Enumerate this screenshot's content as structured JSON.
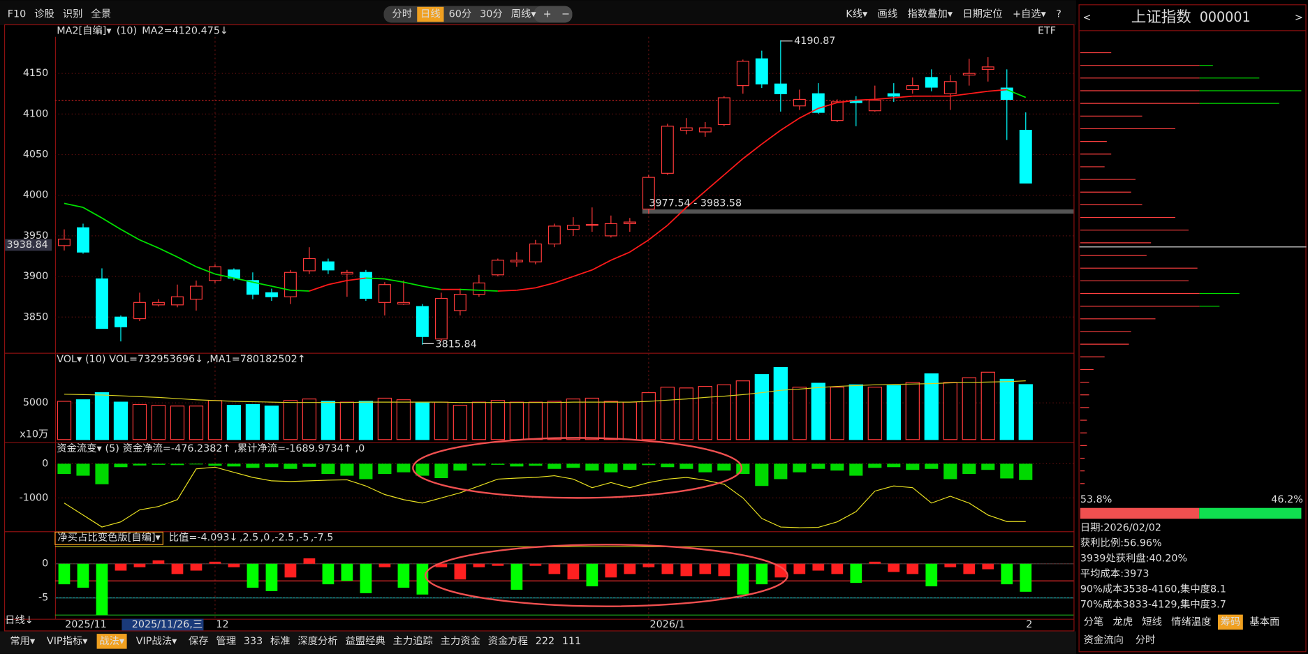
{
  "toolbar": {
    "left": [
      "F10",
      "诊股",
      "识别",
      "全景"
    ],
    "periods": [
      "分时",
      "日线",
      "60分",
      "30分",
      "周线▾"
    ],
    "active_period": 1,
    "zoom": [
      "+",
      "−"
    ],
    "right": [
      "K线▾",
      "画线",
      "指数叠加▾",
      "日期定位",
      "+自选▾",
      "?"
    ]
  },
  "main": {
    "indicator": "MA2[自编]▾",
    "param": "(10)",
    "value_text": "MA2=4120.475↓",
    "etf": "ETF",
    "ylim": [
      3808,
      4195
    ],
    "yticks": [
      4150,
      4100,
      4050,
      4000,
      3950,
      3900,
      3850
    ],
    "price_tag": 3938.84,
    "annotations": [
      "4190.87",
      "3977.54 - 3983.58",
      "3815.84"
    ],
    "up_color": "#ff3a3a",
    "down_color": "#00ffff",
    "ma_up_color": "#ff1a1a",
    "ma_down_color": "#00e000",
    "candles": [
      [
        3938,
        3958,
        3932,
        3946
      ],
      [
        3960,
        3965,
        3928,
        3930
      ],
      [
        3897,
        3910,
        3836,
        3836
      ],
      [
        3850,
        3852,
        3820,
        3838
      ],
      [
        3848,
        3880,
        3845,
        3868
      ],
      [
        3865,
        3872,
        3863,
        3868
      ],
      [
        3865,
        3890,
        3862,
        3875
      ],
      [
        3872,
        3895,
        3858,
        3888
      ],
      [
        3895,
        3915,
        3892,
        3912
      ],
      [
        3908,
        3910,
        3895,
        3898
      ],
      [
        3895,
        3905,
        3872,
        3878
      ],
      [
        3880,
        3885,
        3870,
        3875
      ],
      [
        3875,
        3908,
        3866,
        3905
      ],
      [
        3907,
        3936,
        3903,
        3922
      ],
      [
        3918,
        3922,
        3903,
        3908
      ],
      [
        3903,
        3908,
        3875,
        3905
      ],
      [
        3905,
        3908,
        3870,
        3873
      ],
      [
        3868,
        3893,
        3852,
        3890
      ],
      [
        3866,
        3895,
        3865,
        3868
      ],
      [
        3863,
        3866,
        3816,
        3826
      ],
      [
        3823,
        3880,
        3820,
        3873
      ],
      [
        3858,
        3885,
        3852,
        3878
      ],
      [
        3878,
        3902,
        3875,
        3892
      ],
      [
        3902,
        3922,
        3900,
        3920
      ],
      [
        3918,
        3930,
        3912,
        3920
      ],
      [
        3918,
        3945,
        3915,
        3940
      ],
      [
        3940,
        3965,
        3936,
        3962
      ],
      [
        3958,
        3973,
        3950,
        3963
      ],
      [
        3963,
        3985,
        3955,
        3964
      ],
      [
        3950,
        3975,
        3948,
        3965
      ],
      [
        3965,
        3972,
        3955,
        3967
      ],
      [
        3983,
        4025,
        3977,
        4022
      ],
      [
        4027,
        4088,
        4025,
        4085
      ],
      [
        4080,
        4095,
        4075,
        4083
      ],
      [
        4078,
        4090,
        4072,
        4083
      ],
      [
        4087,
        4122,
        4085,
        4120
      ],
      [
        4135,
        4167,
        4125,
        4165
      ],
      [
        4168,
        4178,
        4132,
        4137
      ],
      [
        4137,
        4190.87,
        4103,
        4125
      ],
      [
        4110,
        4130,
        4105,
        4118
      ],
      [
        4125,
        4138,
        4100,
        4102
      ],
      [
        4092,
        4118,
        4090,
        4115
      ],
      [
        4117,
        4122,
        4085,
        4114
      ],
      [
        4104,
        4135,
        4103,
        4117
      ],
      [
        4125,
        4138,
        4115,
        4122
      ],
      [
        4130,
        4145,
        4125,
        4135
      ],
      [
        4145,
        4155,
        4128,
        4133
      ],
      [
        4125,
        4148,
        4105,
        4140
      ],
      [
        4148,
        4168,
        4135,
        4150
      ],
      [
        4155,
        4170,
        4140,
        4158
      ],
      [
        4132,
        4155,
        4068,
        4118
      ],
      [
        4080,
        4102,
        4015,
        4015
      ]
    ],
    "ma": [
      3990,
      3985,
      3972,
      3958,
      3945,
      3935,
      3924,
      3912,
      3903,
      3898,
      3893,
      3888,
      3883,
      3882,
      3890,
      3895,
      3898,
      3897,
      3893,
      3888,
      3884,
      3884,
      3883,
      3882,
      3883,
      3886,
      3892,
      3900,
      3908,
      3920,
      3930,
      3945,
      3963,
      3985,
      4005,
      4025,
      4045,
      4063,
      4080,
      4095,
      4107,
      4114,
      4117,
      4118,
      4120,
      4122,
      4122,
      4122,
      4125,
      4128,
      4130,
      4120.475
    ]
  },
  "volume": {
    "indicator": "VOL▾",
    "param": "(10)",
    "value_text": "VOL=732953696↓",
    "ma_text": ",MA1=780182502↑",
    "unit": "x10万",
    "ylim": [
      340,
      9560
    ],
    "yticks": [
      5000
    ],
    "ma_color": "#d8d020",
    "values": [
      5200,
      5400,
      6300,
      5100,
      4800,
      4700,
      4600,
      4600,
      5300,
      4700,
      4800,
      4600,
      5300,
      5500,
      5200,
      5100,
      5200,
      5600,
      5400,
      5000,
      5100,
      4700,
      5100,
      5300,
      5100,
      5100,
      5200,
      5500,
      5600,
      5200,
      5100,
      6300,
      7000,
      6900,
      7100,
      7300,
      7800,
      8600,
      9500,
      7000,
      7500,
      7000,
      7300,
      7000,
      7200,
      7600,
      8700,
      7600,
      8200,
      8900,
      8000,
      7330
    ],
    "ma": [
      6100,
      6050,
      6000,
      5900,
      5800,
      5700,
      5550,
      5400,
      5300,
      5200,
      5150,
      5100,
      5050,
      5050,
      5050,
      5050,
      5100,
      5100,
      5100,
      5100,
      5100,
      5050,
      5050,
      5050,
      5050,
      5050,
      5050,
      5100,
      5100,
      5100,
      5100,
      5200,
      5350,
      5500,
      5700,
      5850,
      6050,
      6300,
      6600,
      6750,
      6950,
      7100,
      7200,
      7300,
      7350,
      7400,
      7450,
      7550,
      7600,
      7650,
      7700,
      7802
    ]
  },
  "flow": {
    "indicator": "资金流变▾",
    "param": "(5)",
    "value_text": "资金净流=-476.2382↑",
    "cum_text": ",累计净流=-1689.9734↑",
    "tail": ",0",
    "ylim": [
      -1950,
      195
    ],
    "yticks": [
      0,
      -1000
    ],
    "bar_color": "#00ff00",
    "line_color": "#e8e020",
    "values": [
      -300,
      -350,
      -600,
      -100,
      -50,
      -30,
      -40,
      -20,
      -60,
      -80,
      -120,
      -100,
      -150,
      -90,
      -300,
      -350,
      -450,
      -300,
      -250,
      -350,
      -420,
      -200,
      -50,
      -30,
      -80,
      -60,
      -150,
      -120,
      -200,
      -250,
      -180,
      -40,
      -100,
      -150,
      -250,
      -200,
      -300,
      -650,
      -450,
      -250,
      -150,
      -200,
      -350,
      -120,
      -100,
      -180,
      -150,
      -450,
      -300,
      -180,
      -430,
      -476.2382
    ],
    "cumulative": [
      -1150,
      -1500,
      -1850,
      -1700,
      -1350,
      -1250,
      -1050,
      -150,
      -100,
      -250,
      -400,
      -500,
      -520,
      -500,
      -480,
      -470,
      -650,
      -900,
      -1050,
      -1150,
      -1000,
      -850,
      -650,
      -450,
      -420,
      -400,
      -350,
      -450,
      -700,
      -550,
      -700,
      -550,
      -450,
      -400,
      -480,
      -600,
      -1000,
      -1600,
      -1850,
      -1870,
      -1860,
      -1700,
      -1400,
      -800,
      -650,
      -700,
      -1150,
      -950,
      -1150,
      -1500,
      -1690,
      -1689.9734
    ]
  },
  "ratio": {
    "indicator": "净买占比变色版[自编]▾",
    "value_text": "比值=-4.093↓",
    "ylim": [
      -8.05,
      2.56
    ],
    "yticks": [
      0,
      -5
    ],
    "up_color": "#ff2020",
    "down_color": "#00ff00",
    "threshold": -2.5,
    "levels": [
      {
        "value": 2.5,
        "label": ",2.5",
        "color": "#d8d020"
      },
      {
        "value": 0,
        "label": ",0",
        "color": "#dddddd"
      },
      {
        "value": -2.5,
        "label": ",-2.5",
        "color": "#ff3030"
      },
      {
        "value": -5,
        "label": ",-5",
        "color": "#20d0d0"
      },
      {
        "value": -7.5,
        "label": ",-7.5",
        "color": "#20c020"
      }
    ],
    "values": [
      -3,
      -3.5,
      -7.5,
      -1,
      -0.5,
      0.5,
      -1.5,
      -1,
      0.3,
      -0.5,
      -3.5,
      -4,
      -2,
      0.8,
      -3,
      -2.5,
      -4.3,
      -0.5,
      -3.5,
      -4.5,
      -0.5,
      -2.3,
      -0.5,
      -0.3,
      -3.8,
      -0.3,
      -1.5,
      -2.3,
      -3.3,
      -2,
      -1.5,
      -0.5,
      -1.5,
      -1.8,
      -1.5,
      -1.8,
      -4.5,
      -3,
      -2,
      -1.5,
      -1,
      -1.5,
      -2.8,
      0.3,
      -1.2,
      -1.5,
      -3.3,
      -0.5,
      -1.5,
      -0.8,
      -3,
      -4.093
    ]
  },
  "xaxis": {
    "period": "日线↓",
    "labels": [
      "2025/11",
      "12",
      "2026/1",
      "2"
    ],
    "cursor_date": "2025/11/26,三"
  },
  "tabs": [
    "常用▾",
    "VIP指标▾",
    "战法▾",
    "VIP战法▾",
    "保存",
    "管理",
    "333",
    "标准",
    "深度分析",
    "益盟经典",
    "主力追踪",
    "主力资金",
    "资金方程",
    "222",
    "111"
  ],
  "side": {
    "title": "上证指数",
    "code": "000001",
    "prev": "<",
    "next": ">",
    "chips": [
      14,
      60,
      81,
      100,
      90,
      28,
      43,
      12,
      14,
      11,
      25,
      23,
      28,
      43,
      49,
      32,
      30,
      53,
      49,
      72,
      63,
      34,
      23,
      22,
      11,
      6,
      4,
      4,
      4,
      3,
      3,
      3,
      2,
      2,
      2
    ],
    "profit": {
      "value": 53.8,
      "label": "53.8%"
    },
    "loss": {
      "value": 46.2,
      "label": "46.2%"
    },
    "info": [
      "日期:2026/02/02",
      "获利比例:56.96%",
      "3939处获利盘:40.20%",
      "平均成本:3973",
      "90%成本3538-4160,集中度8.1",
      "70%成本3833-4129,集中度3.7"
    ],
    "tabs": [
      "分笔",
      "龙虎",
      "短线",
      "情绪温度",
      "筹码",
      "基本面"
    ],
    "active_tab": 4,
    "tabs2": [
      "资金流向",
      "分时"
    ]
  }
}
